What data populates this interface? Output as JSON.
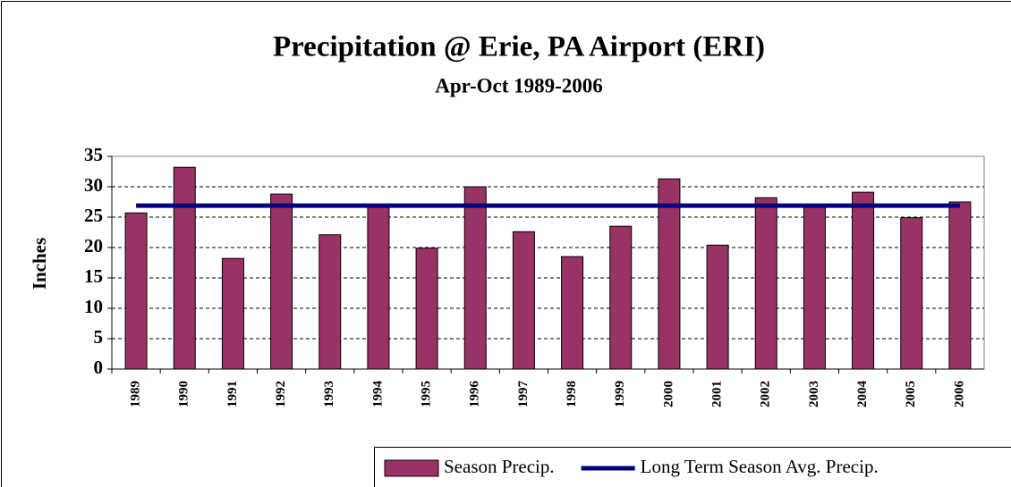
{
  "chart_data": {
    "type": "bar",
    "title": "Precipitation @ Erie, PA Airport (ERI)",
    "subtitle": "Apr-Oct 1989-2006",
    "y_label": "Inches",
    "categories": [
      "1989",
      "1990",
      "1991",
      "1992",
      "1993",
      "1994",
      "1995",
      "1996",
      "1997",
      "1998",
      "1999",
      "2000",
      "2001",
      "2002",
      "2003",
      "2004",
      "2005",
      "2006"
    ],
    "series": [
      {
        "name": "Season Precip.",
        "color": "#993366",
        "type": "bar",
        "values": [
          25.7,
          33.2,
          18.2,
          28.8,
          22.1,
          26.9,
          19.9,
          30.0,
          22.6,
          18.5,
          23.5,
          31.3,
          20.4,
          28.2,
          26.9,
          29.1,
          24.9,
          27.5
        ]
      },
      {
        "name": "Long Term Season Avg. Precip.",
        "color": "#000080",
        "type": "line",
        "values": [
          26.9,
          26.9,
          26.9,
          26.9,
          26.9,
          26.9,
          26.9,
          26.9,
          26.9,
          26.9,
          26.9,
          26.9,
          26.9,
          26.9,
          26.9,
          26.9,
          26.9,
          26.9
        ]
      }
    ],
    "ylim": [
      0,
      35
    ],
    "yticks": [
      0,
      5,
      10,
      15,
      20,
      25,
      30,
      35
    ],
    "grid": true,
    "legend": "bottom-right"
  }
}
